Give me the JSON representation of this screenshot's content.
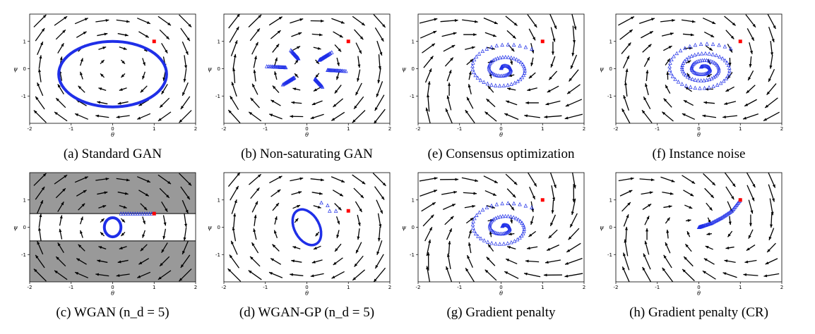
{
  "figure": {
    "axes": {
      "xlabel": "θ",
      "ylabel": "ψ"
    },
    "marker_colors": {
      "trajectory": "#1f2fe8",
      "start_point": "#ff0000",
      "arrows": "#000000",
      "shaded_region": "#999999"
    }
  },
  "chart_data": [
    {
      "id": "a",
      "caption": "(a) Standard GAN",
      "type": "scatter",
      "xlim": [
        -2,
        2
      ],
      "ylim": [
        -2,
        2
      ],
      "x_ticks": [
        "-2",
        "-1",
        "0",
        "1",
        "2"
      ],
      "y_ticks": [
        "1",
        "0",
        "-1"
      ],
      "field": {
        "a": 0,
        "b": 1,
        "c": -1,
        "d": 0
      },
      "start": [
        1,
        1
      ],
      "trajectory": {
        "kind": "ellipse",
        "cx": 0,
        "cy": -0.2,
        "rx": 1.3,
        "ry": 1.2,
        "style": "thick"
      }
    },
    {
      "id": "b",
      "caption": "(b) Non-saturating GAN",
      "type": "scatter",
      "xlim": [
        -2,
        2
      ],
      "ylim": [
        -2,
        2
      ],
      "x_ticks": [
        "-2",
        "-1",
        "0",
        "1",
        "2"
      ],
      "y_ticks": [
        "1",
        "0",
        "-1"
      ],
      "field": {
        "a": -0.05,
        "b": 1,
        "c": -1.2,
        "d": 0.15
      },
      "start": [
        1,
        1
      ],
      "trajectory": {
        "kind": "spiral",
        "cx": 0,
        "cy": 0,
        "r0x": 1.0,
        "r0y": 0.75,
        "r1x": 0.5,
        "r1y": 0.4,
        "turns": 22,
        "density": 6
      }
    },
    {
      "id": "e",
      "caption": "(e) Consensus optimization",
      "type": "scatter",
      "xlim": [
        -2,
        2
      ],
      "ylim": [
        -2,
        2
      ],
      "x_ticks": [
        "-2",
        "-1",
        "0",
        "1",
        "2"
      ],
      "y_ticks": [
        "1",
        "0",
        "-1"
      ],
      "field": {
        "a": -0.6,
        "b": 1,
        "c": -1,
        "d": -0.6
      },
      "start": [
        1,
        1
      ],
      "trajectory": {
        "kind": "spiral",
        "cx": 0.05,
        "cy": 0.0,
        "r0x": 1.0,
        "r0y": 1.0,
        "r1x": 0.05,
        "r1y": 0.05,
        "turns": 2.3,
        "density": 40
      }
    },
    {
      "id": "f",
      "caption": "(f) Instance noise",
      "type": "scatter",
      "xlim": [
        -2,
        2
      ],
      "ylim": [
        -2,
        2
      ],
      "x_ticks": [
        "-2",
        "-1",
        "0",
        "1",
        "2"
      ],
      "y_ticks": [
        "1",
        "0",
        "-1"
      ],
      "field": {
        "a": -0.3,
        "b": 1,
        "c": -1,
        "d": -0.3
      },
      "start": [
        1,
        1
      ],
      "trajectory": {
        "kind": "spiral",
        "cx": 0.1,
        "cy": 0.0,
        "r0x": 1.0,
        "r0y": 1.0,
        "r1x": 0.1,
        "r1y": 0.08,
        "turns": 3.2,
        "density": 40
      }
    },
    {
      "id": "c",
      "caption": "(c) WGAN (n_d = 5)",
      "type": "scatter",
      "xlim": [
        -2,
        2
      ],
      "ylim": [
        -2,
        2
      ],
      "x_ticks": [
        "-2",
        "-1",
        "0",
        "1",
        "2"
      ],
      "y_ticks": [
        "1",
        "0",
        "-1"
      ],
      "field": {
        "a": 0,
        "b": 1,
        "c": -1,
        "d": 0
      },
      "shaded_bands": [
        [
          -2,
          -0.5
        ],
        [
          0.5,
          2
        ]
      ],
      "start": [
        1,
        0.5
      ],
      "trajectory": {
        "kind": "ellipse",
        "cx": 0,
        "cy": 0,
        "rx": 0.2,
        "ry": 0.35,
        "style": "thick",
        "approach": [
          [
            1,
            0.5
          ],
          [
            0.2,
            0.5
          ]
        ]
      }
    },
    {
      "id": "d",
      "caption": "(d) WGAN-GP (n_d = 5)",
      "type": "scatter",
      "xlim": [
        -2,
        2
      ],
      "ylim": [
        -2,
        2
      ],
      "x_ticks": [
        "-2",
        "-1",
        "0",
        "1",
        "2"
      ],
      "y_ticks": [
        "1",
        "0",
        "-1"
      ],
      "field": {
        "a": 0.05,
        "b": 1,
        "c": -1.1,
        "d": 0.05
      },
      "start": [
        1,
        0.6
      ],
      "trajectory": {
        "kind": "tilted-ellipse",
        "cx": 0.0,
        "cy": 0.0,
        "rx": 0.3,
        "ry": 0.7,
        "tilt": -0.5,
        "style": "thick",
        "sparse": [
          [
            0.55,
            0.6
          ],
          [
            0.7,
            0.6
          ],
          [
            0.35,
            0.9
          ],
          [
            0.5,
            0.8
          ]
        ]
      }
    },
    {
      "id": "g",
      "caption": "(g) Gradient penalty",
      "type": "scatter",
      "xlim": [
        -2,
        2
      ],
      "ylim": [
        -2,
        2
      ],
      "x_ticks": [
        "-2",
        "-1",
        "0",
        "1",
        "2"
      ],
      "y_ticks": [
        "1",
        "0",
        "-1"
      ],
      "field": {
        "a": -0.7,
        "b": 1,
        "c": -1,
        "d": -0.7
      },
      "start": [
        1,
        1
      ],
      "trajectory": {
        "kind": "spiral",
        "cx": 0.05,
        "cy": 0.0,
        "r0x": 1.0,
        "r0y": 1.0,
        "r1x": 0.05,
        "r1y": 0.05,
        "turns": 2.2,
        "density": 40
      }
    },
    {
      "id": "h",
      "caption": "(h) Gradient penalty (CR)",
      "type": "scatter",
      "xlim": [
        -2,
        2
      ],
      "ylim": [
        -2,
        2
      ],
      "x_ticks": [
        "-2",
        "-1",
        "0",
        "1",
        "2"
      ],
      "y_ticks": [
        "1",
        "0",
        "-1"
      ],
      "field": {
        "a": -0.2,
        "b": 1,
        "c": -1,
        "d": -0.8
      },
      "start": [
        1,
        1
      ],
      "trajectory": {
        "kind": "curve",
        "points": [
          [
            1,
            1
          ],
          [
            0.8,
            0.6
          ],
          [
            0.55,
            0.35
          ],
          [
            0.3,
            0.15
          ],
          [
            0.1,
            0.05
          ],
          [
            0,
            0
          ]
        ],
        "density": 50
      }
    }
  ]
}
